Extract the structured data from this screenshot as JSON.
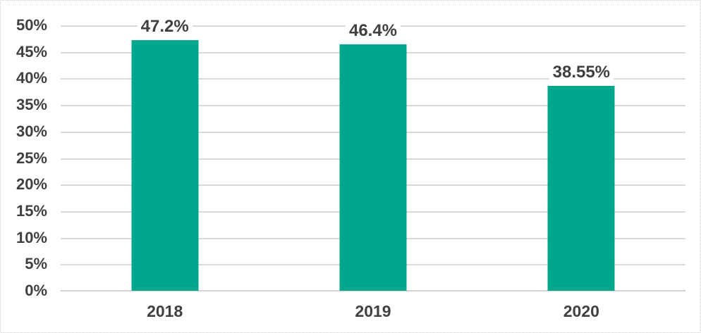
{
  "chart_data": {
    "type": "bar",
    "categories": [
      "2018",
      "2019",
      "2020"
    ],
    "values": [
      47.2,
      46.4,
      38.55
    ],
    "data_labels": [
      "47.2%",
      "46.4%",
      "38.55%"
    ],
    "title": "",
    "xlabel": "",
    "ylabel": "",
    "ylim": [
      0,
      50
    ],
    "ytick_step": 5,
    "ytick_values": [
      0,
      5,
      10,
      15,
      20,
      25,
      30,
      35,
      40,
      45,
      50
    ],
    "ytick_labels": [
      "0%",
      "5%",
      "10%",
      "15%",
      "20%",
      "25%",
      "30%",
      "35%",
      "40%",
      "45%",
      "50%"
    ],
    "grid": "horizontal",
    "legend": "none",
    "colors": {
      "bar": "#00A78D",
      "gridline": "#D9D9D9",
      "axis_line": "#D3D3D3",
      "text": "#404040",
      "background": "#FFFFFF",
      "border": "#CFCFCF"
    }
  }
}
